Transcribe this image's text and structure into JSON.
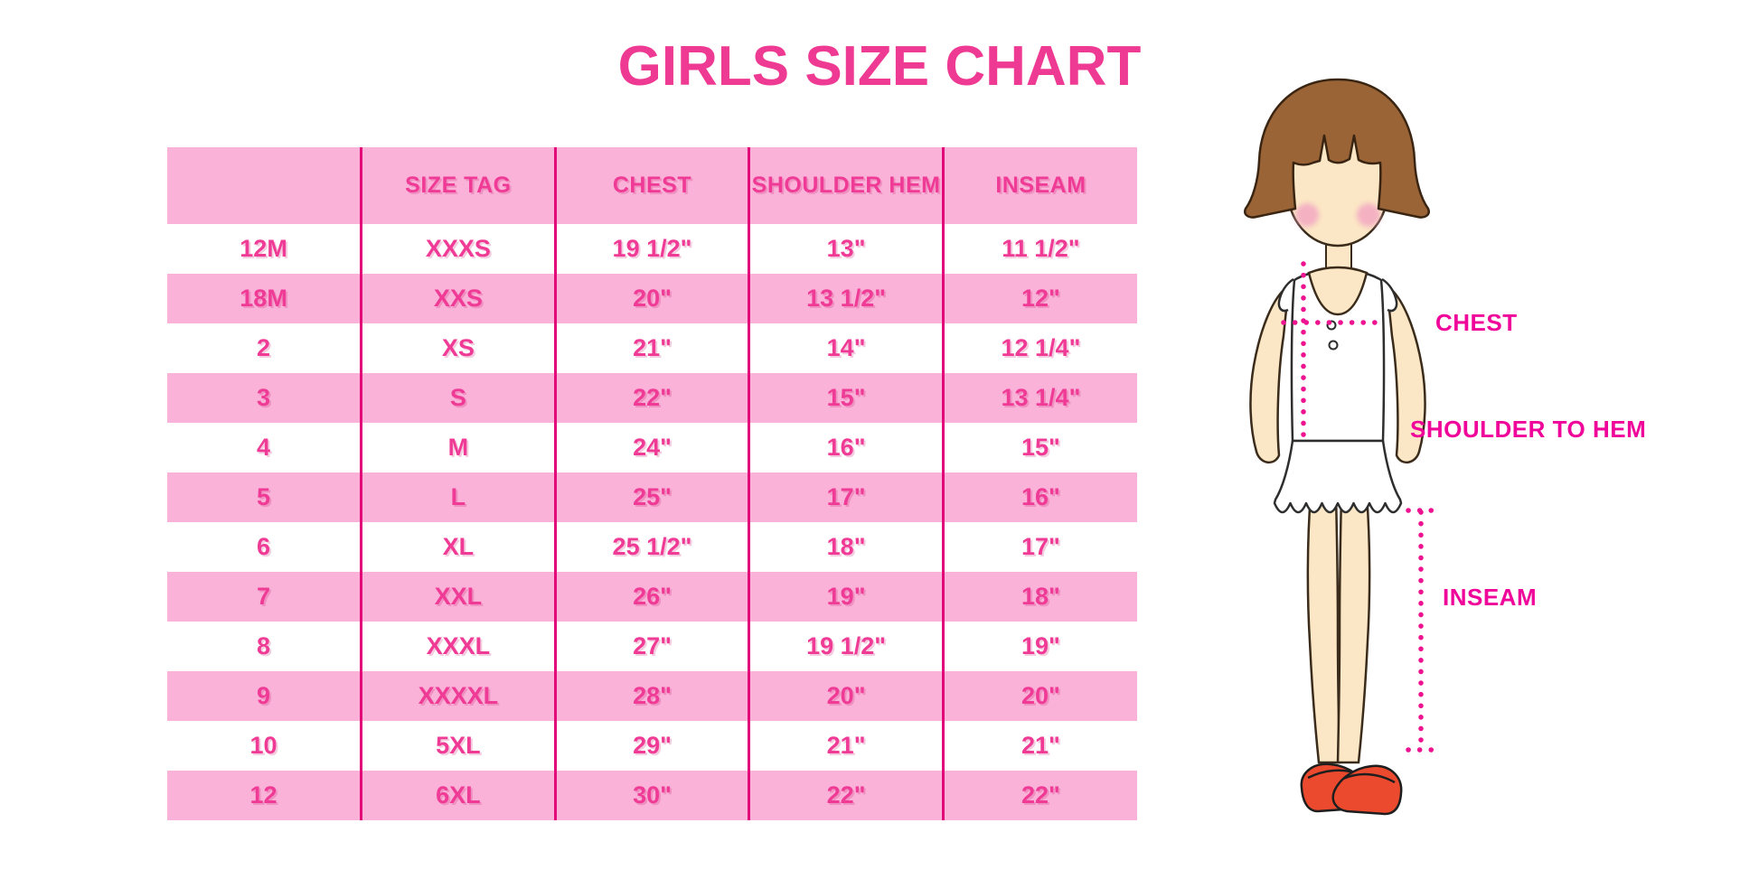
{
  "chart_data": {
    "type": "table",
    "title": "GIRLS SIZE CHART",
    "headers": [
      "",
      "SIZE TAG",
      "CHEST",
      "SHOULDER HEM",
      "INSEAM"
    ],
    "rows": [
      [
        "12M",
        "XXXS",
        "19 1/2\"",
        "13\"",
        "11 1/2\""
      ],
      [
        "18M",
        "XXS",
        "20\"",
        "13 1/2\"",
        "12\""
      ],
      [
        "2",
        "XS",
        "21\"",
        "14\"",
        "12 1/4\""
      ],
      [
        "3",
        "S",
        "22\"",
        "15\"",
        "13 1/4\""
      ],
      [
        "4",
        "M",
        "24\"",
        "16\"",
        "15\""
      ],
      [
        "5",
        "L",
        "25\"",
        "17\"",
        "16\""
      ],
      [
        "6",
        "XL",
        "25 1/2\"",
        "18\"",
        "17\""
      ],
      [
        "7",
        "XXL",
        "26\"",
        "19\"",
        "18\""
      ],
      [
        "8",
        "XXXL",
        "27\"",
        "19 1/2\"",
        "19\""
      ],
      [
        "9",
        "XXXXL",
        "28\"",
        "20\"",
        "20\""
      ],
      [
        "10",
        "5XL",
        "29\"",
        "21\"",
        "21\""
      ],
      [
        "12",
        "6XL",
        "30\"",
        "22\"",
        "22\""
      ]
    ],
    "layout": {
      "header_background": "pink",
      "row_striping": "white/pink alternating",
      "grid": "vertical magenta separators only"
    }
  },
  "figure": {
    "labels": {
      "chest": "CHEST",
      "shoulder_to_hem": "SHOULDER TO HEM",
      "inseam": "INSEAM"
    }
  },
  "colors": {
    "title_pink": "#ee3a92",
    "row_pink": "#fab2d9",
    "cell_text_pink": "#ef3b95",
    "separator_magenta": "#e2087a",
    "label_magenta": "#f0059a",
    "dotted_line_magenta": "#ed1390",
    "hair_brown": "#9b6437",
    "skin": "#fbe7c5",
    "shoe_red": "#ec4a2e"
  }
}
